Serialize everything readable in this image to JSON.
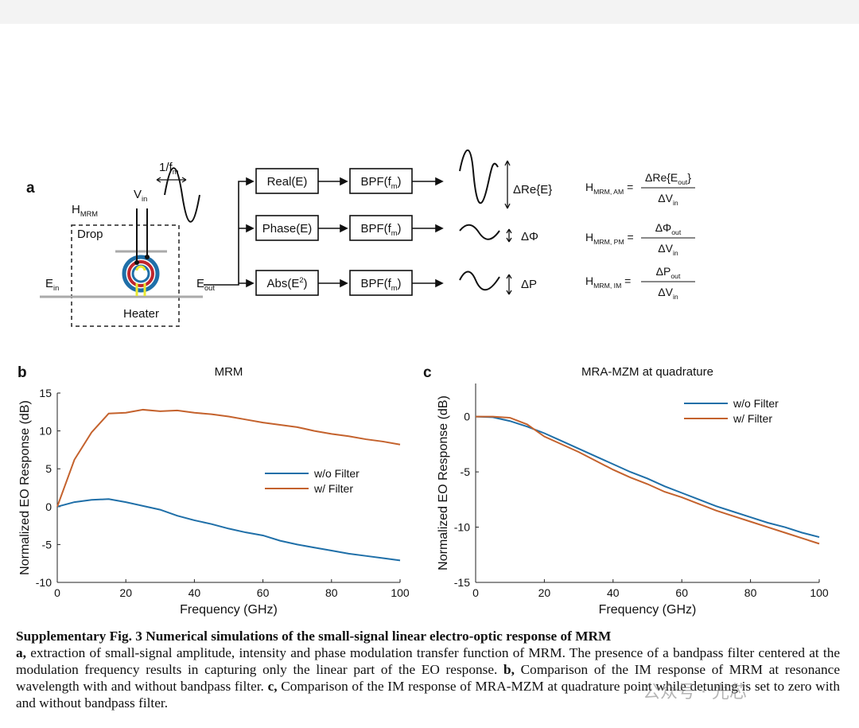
{
  "diagram": {
    "panel": "a",
    "texts": [
      [
        {
          "t": "1/f"
        },
        {
          "t": "m",
          "sub": true
        }
      ],
      [
        {
          "t": "V"
        },
        {
          "t": "in",
          "sub": true
        }
      ],
      [
        {
          "t": "H"
        },
        {
          "t": "MRM",
          "sub": true
        }
      ],
      [
        {
          "t": "Drop"
        }
      ],
      [
        {
          "t": "E"
        },
        {
          "t": "in",
          "sub": true
        }
      ],
      [
        {
          "t": "E"
        },
        {
          "t": "out",
          "sub": true
        }
      ],
      [
        {
          "t": "Heater"
        }
      ],
      [
        {
          "t": "Real(E)"
        }
      ],
      [
        {
          "t": "Phase(E)"
        }
      ],
      [
        {
          "t": "Abs(E"
        },
        {
          "t": "2",
          "sup": true
        },
        {
          "t": ")"
        }
      ],
      [
        {
          "t": "BPF(f"
        },
        {
          "t": "m",
          "sub": true
        },
        {
          "t": ")"
        }
      ],
      [
        {
          "t": "BPF(f"
        },
        {
          "t": "m",
          "sub": true
        },
        {
          "t": ")"
        }
      ],
      [
        {
          "t": "BPF(f"
        },
        {
          "t": "m",
          "sub": true
        },
        {
          "t": ")"
        }
      ],
      [
        {
          "t": "ΔRe{E}"
        }
      ],
      [
        {
          "t": "ΔΦ"
        }
      ],
      [
        {
          "t": "ΔP"
        }
      ]
    ],
    "formulas": [
      {
        "lhs": [
          {
            "t": "H"
          },
          {
            "t": "MRM, AM",
            "sub": true
          },
          {
            "t": " ="
          }
        ],
        "num": [
          {
            "t": "ΔRe{E"
          },
          {
            "t": "out",
            "sub": true
          },
          {
            "t": "}"
          }
        ],
        "den": [
          {
            "t": "ΔV"
          },
          {
            "t": "in",
            "sub": true
          }
        ]
      },
      {
        "lhs": [
          {
            "t": "H"
          },
          {
            "t": "MRM, PM",
            "sub": true
          },
          {
            "t": " ="
          }
        ],
        "num": [
          {
            "t": "ΔΦ"
          },
          {
            "t": "out",
            "sub": true
          }
        ],
        "den": [
          {
            "t": "ΔV"
          },
          {
            "t": "in",
            "sub": true
          }
        ]
      },
      {
        "lhs": [
          {
            "t": "H"
          },
          {
            "t": "MRM, IM",
            "sub": true
          },
          {
            "t": " ="
          }
        ],
        "num": [
          {
            "t": "ΔP"
          },
          {
            "t": "out",
            "sub": true
          }
        ],
        "den": [
          {
            "t": "ΔV"
          },
          {
            "t": "in",
            "sub": true
          }
        ]
      }
    ]
  },
  "chart_data": [
    {
      "type": "line",
      "panel": "b",
      "title": "MRM",
      "xlabel": "Frequency (GHz)",
      "ylabel": "Normalized EO Response (dB)",
      "x": [
        0,
        5,
        10,
        15,
        20,
        25,
        30,
        35,
        40,
        45,
        50,
        55,
        60,
        65,
        70,
        75,
        80,
        85,
        90,
        95,
        100
      ],
      "series": [
        {
          "name": "w/o Filter",
          "color": "#1f6fa8",
          "values": [
            0,
            0.6,
            0.9,
            1.0,
            0.6,
            0.1,
            -0.4,
            -1.2,
            -1.8,
            -2.3,
            -2.9,
            -3.4,
            -3.8,
            -4.5,
            -5.0,
            -5.4,
            -5.8,
            -6.2,
            -6.5,
            -6.8,
            -7.1
          ]
        },
        {
          "name": "w/ Filter",
          "color": "#c4622d",
          "values": [
            0,
            6.2,
            9.8,
            12.3,
            12.4,
            12.8,
            12.6,
            12.7,
            12.4,
            12.2,
            11.9,
            11.5,
            11.1,
            10.8,
            10.5,
            10.0,
            9.6,
            9.3,
            8.9,
            8.6,
            8.2
          ]
        }
      ],
      "xlim": [
        0,
        100
      ],
      "xticks": [
        0,
        20,
        40,
        60,
        80,
        100
      ],
      "ylim": [
        -10,
        15
      ],
      "yticks": [
        -10,
        -5,
        0,
        5,
        10,
        15
      ],
      "grid": false,
      "legend": "center right"
    },
    {
      "type": "line",
      "panel": "c",
      "title": "MRA-MZM at quadrature",
      "xlabel": "Frequency (GHz)",
      "ylabel": "Normalized EO Response (dB)",
      "x": [
        0,
        5,
        10,
        15,
        20,
        25,
        30,
        35,
        40,
        45,
        50,
        55,
        60,
        65,
        70,
        75,
        80,
        85,
        90,
        95,
        100
      ],
      "series": [
        {
          "name": "w/o Filter",
          "color": "#1f6fa8",
          "values": [
            0,
            -0.05,
            -0.4,
            -0.9,
            -1.5,
            -2.2,
            -2.9,
            -3.6,
            -4.3,
            -5.0,
            -5.6,
            -6.3,
            -6.9,
            -7.5,
            -8.1,
            -8.6,
            -9.1,
            -9.6,
            -10.0,
            -10.5,
            -10.9
          ]
        },
        {
          "name": "w/ Filter",
          "color": "#c4622d",
          "values": [
            0,
            0,
            -0.1,
            -0.7,
            -1.8,
            -2.5,
            -3.2,
            -4.0,
            -4.8,
            -5.5,
            -6.1,
            -6.8,
            -7.3,
            -7.9,
            -8.5,
            -9.0,
            -9.5,
            -10.0,
            -10.5,
            -11.0,
            -11.5
          ]
        }
      ],
      "xlim": [
        0,
        100
      ],
      "xticks": [
        0,
        20,
        40,
        60,
        80,
        100
      ],
      "ylim": [
        -15,
        3
      ],
      "yticks": [
        -15,
        -10,
        -5,
        0
      ],
      "grid": false,
      "legend": "upper right"
    }
  ],
  "caption": {
    "title": "Supplementary Fig. 3  Numerical simulations of the small-signal linear electro-optic response of MRM",
    "body": [
      {
        "t": "a,",
        "bold": true
      },
      {
        "t": " extraction of small-signal amplitude, intensity and phase modulation transfer function of MRM. The presence of a bandpass filter centered at the modulation frequency results in capturing only the linear part of the EO response. "
      },
      {
        "t": "b,",
        "bold": true
      },
      {
        "t": " Comparison of the IM response of MRM at resonance wavelength with and without bandpass filter. "
      },
      {
        "t": "c,",
        "bold": true
      },
      {
        "t": " Comparison of the IM response of MRA-MZM at quadrature point while detuning is set to zero with and without bandpass filter."
      }
    ]
  },
  "watermark": "公众号 · 光芯"
}
